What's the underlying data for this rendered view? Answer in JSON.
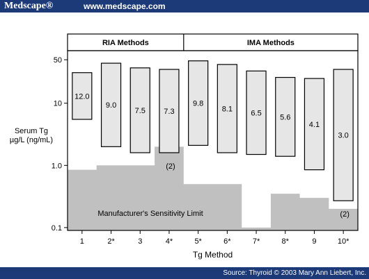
{
  "header": {
    "brand": "Medscape®",
    "url": "www.medscape.com"
  },
  "footer": {
    "source": "Source: Thyroid © 2003 Mary Ann Liebert, Inc."
  },
  "colors": {
    "header_bg": "#1c3a78",
    "shade": "#c0c0c0",
    "bar_fill": "#e6e6e6"
  },
  "chart_data": {
    "type": "bar",
    "xlabel": "Tg Method",
    "ylabel": "Serum Tg µg/L (ng/mL)",
    "yscale": "log",
    "ylim": [
      0.09,
      70
    ],
    "yticks": [
      0.1,
      1.0,
      10,
      50
    ],
    "ytick_labels": [
      "0.1",
      "1.0",
      "10",
      "50"
    ],
    "categories": [
      "1",
      "2*",
      "3",
      "4*",
      "5*",
      "6*",
      "7*",
      "8*",
      "9",
      "10*"
    ],
    "group_headers": [
      {
        "label": "RIA Methods",
        "from": 0,
        "to": 3
      },
      {
        "label": "IMA Methods",
        "from": 4,
        "to": 9
      }
    ],
    "series": [
      {
        "type": "range",
        "low": [
          5.5,
          2.0,
          1.6,
          1.6,
          2.1,
          1.6,
          1.5,
          1.4,
          0.85,
          0.27
        ],
        "high": [
          31,
          44,
          37,
          35,
          48,
          42,
          33,
          26,
          25,
          35
        ],
        "labels": [
          "12.0",
          "9.0",
          "7.5",
          "7.3",
          "9.8",
          "8.1",
          "6.5",
          "5.6",
          "4.1",
          "3.0"
        ]
      },
      {
        "name": "Manufacturer's Sensitivity Limit",
        "type": "area",
        "values": [
          0.85,
          1.0,
          1.0,
          2.0,
          0.5,
          0.5,
          0.1,
          0.35,
          0.3,
          0.2
        ]
      }
    ],
    "annotations": [
      {
        "text": "(2)",
        "category": "4*"
      },
      {
        "text": "(2)",
        "category": "10*"
      }
    ],
    "shade_label": "Manufacturer's Sensitivity Limit"
  }
}
